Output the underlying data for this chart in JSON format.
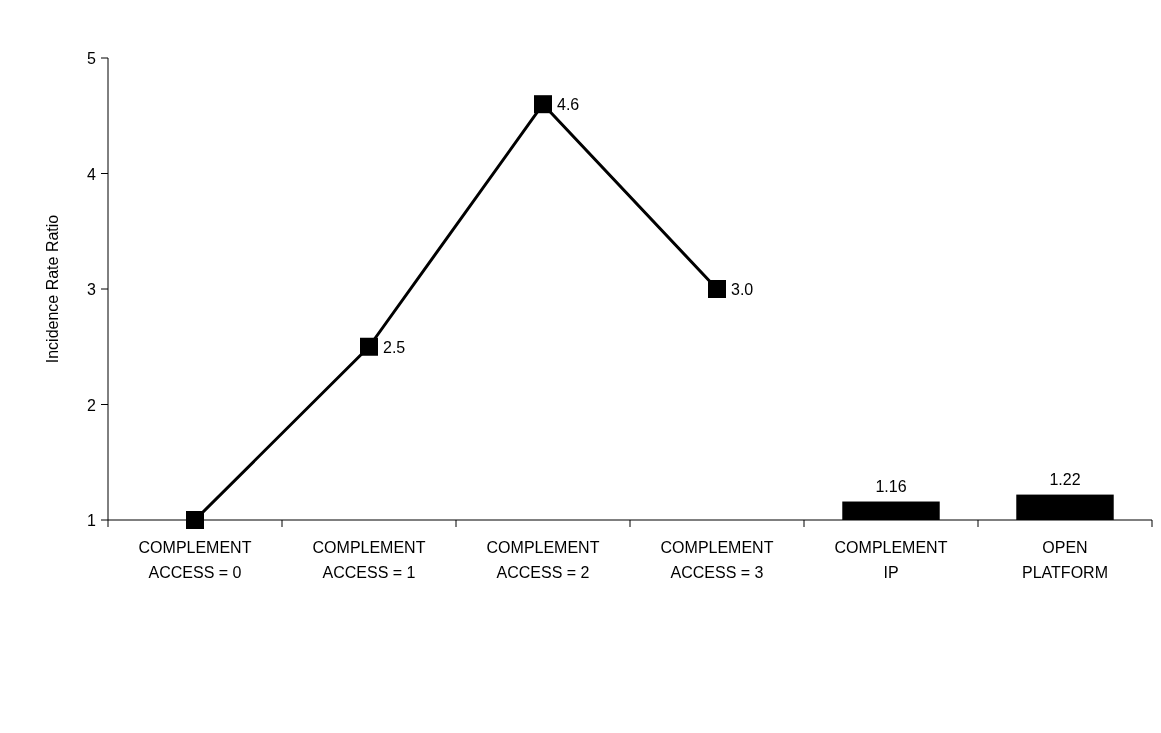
{
  "chart_data": {
    "type": "line",
    "ylabel": "Incidence Rate Ratio",
    "categories": [
      "COMPLEMENT ACCESS = 0",
      "COMPLEMENT ACCESS = 1",
      "COMPLEMENT ACCESS = 2",
      "COMPLEMENT ACCESS = 3",
      "COMPLEMENT IP",
      "OPEN PLATFORM"
    ],
    "series": [
      {
        "color": "#000000",
        "marker": "square",
        "line_style": "solid",
        "values": [
          1,
          2.5,
          4.6,
          3.0,
          null,
          null
        ],
        "value_labels": [
          null,
          "2.5",
          "4.6",
          "3.0",
          null,
          null
        ]
      },
      {
        "type": "bar",
        "color": "#000000",
        "values": [
          null,
          null,
          null,
          null,
          1.16,
          1.22
        ],
        "value_labels": [
          null,
          null,
          null,
          null,
          "1.16",
          "1.22"
        ]
      }
    ],
    "ylim": [
      1,
      5
    ],
    "yticks": [
      1,
      2,
      3,
      4,
      5
    ],
    "grid": false
  }
}
